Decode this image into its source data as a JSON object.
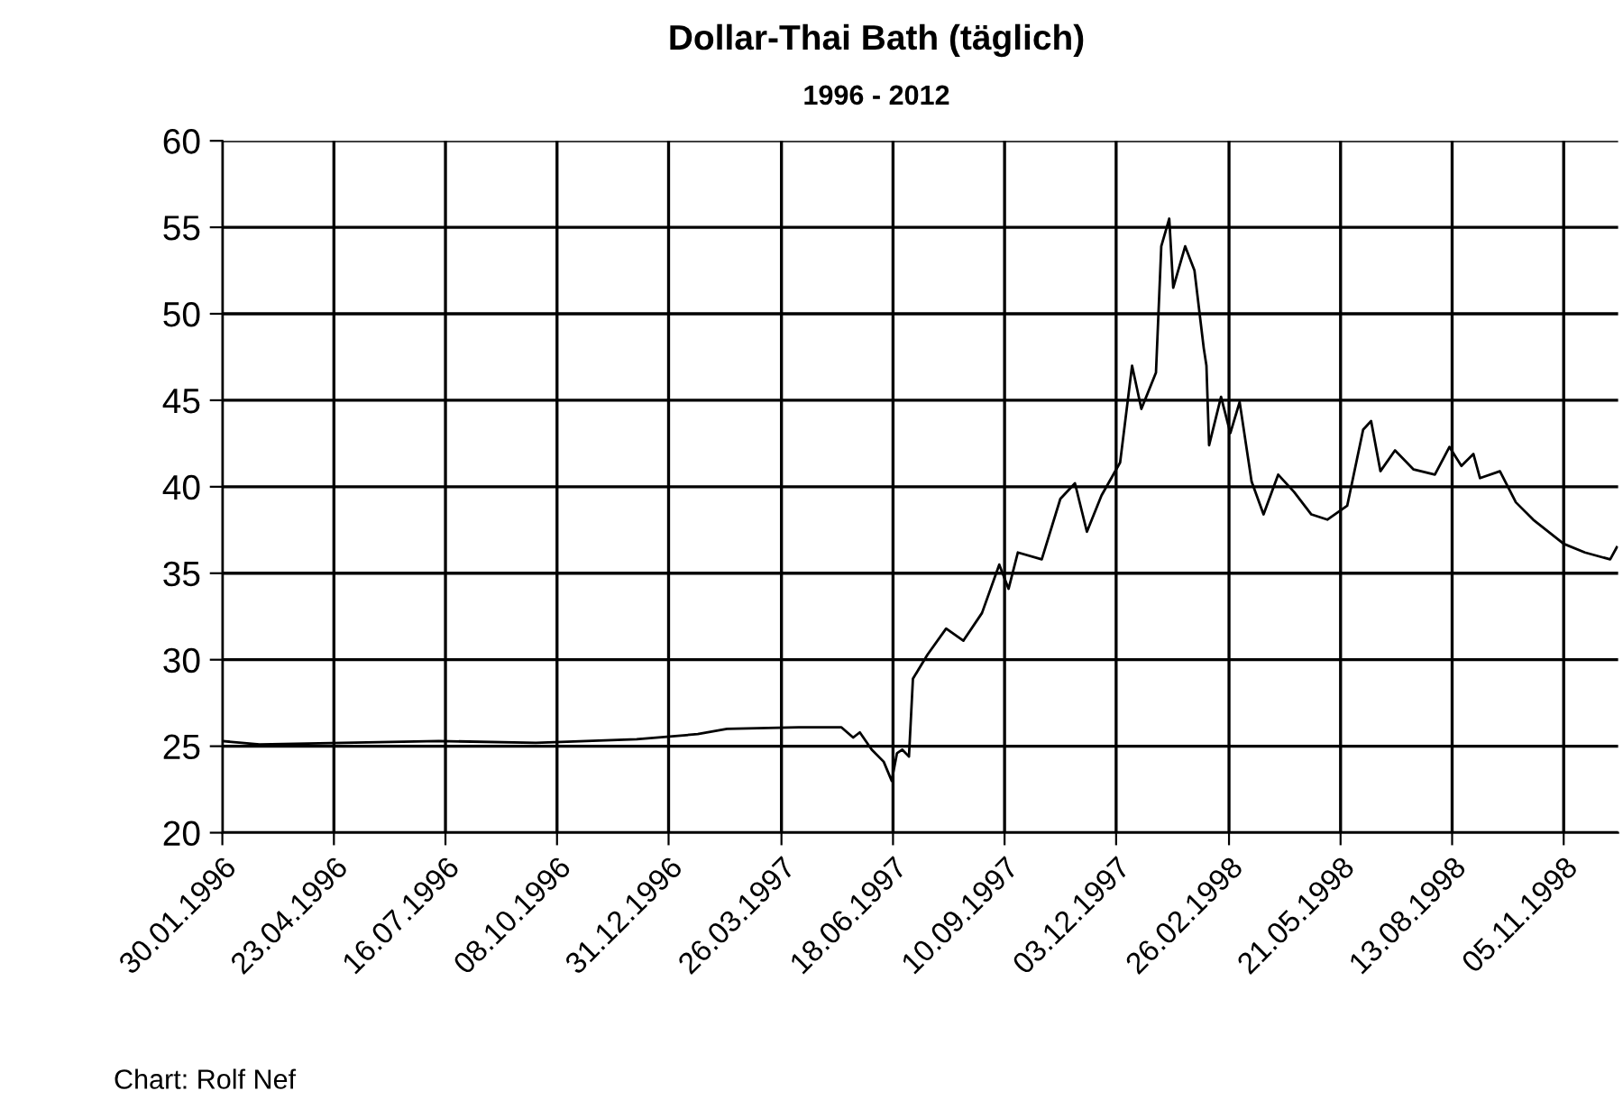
{
  "chart_data": {
    "type": "line",
    "title": "Dollar-Thai Bath (täglich)",
    "subtitle": "1996 - 2012",
    "annotations": [
      "Chart: Rolf Nef"
    ],
    "x": [
      "1996-01-30",
      "1996-02-27",
      "1996-07-11",
      "1996-09-22",
      "1996-12-07",
      "1997-01-22",
      "1997-02-13",
      "1997-04-08",
      "1997-05-10",
      "1997-05-19",
      "1997-05-24",
      "1997-06-02",
      "1997-06-11",
      "1997-06-17",
      "1997-06-21",
      "1997-06-25",
      "1997-06-30",
      "1997-07-03",
      "1997-07-14",
      "1997-07-28",
      "1997-08-10",
      "1997-08-24",
      "1997-09-06",
      "1997-09-13",
      "1997-09-20",
      "1997-10-08",
      "1997-10-22",
      "1997-11-02",
      "1997-11-11",
      "1997-11-22",
      "1997-12-06",
      "1997-12-15",
      "1997-12-22",
      "1998-01-02",
      "1998-01-06",
      "1998-01-12",
      "1998-01-15",
      "1998-01-24",
      "1998-01-31",
      "1998-02-07",
      "1998-02-09",
      "1998-02-11",
      "1998-02-20",
      "1998-02-27",
      "1998-03-06",
      "1998-03-15",
      "1998-03-24",
      "1998-04-04",
      "1998-04-16",
      "1998-04-29",
      "1998-05-11",
      "1998-05-26",
      "1998-06-07",
      "1998-06-13",
      "1998-06-20",
      "1998-07-01",
      "1998-07-15",
      "1998-07-31",
      "1998-08-11",
      "1998-08-20",
      "1998-08-29",
      "1998-09-03",
      "1998-09-18",
      "1998-09-30",
      "1998-10-13",
      "1998-11-05",
      "1998-11-21",
      "1998-12-10",
      "1998-12-15"
    ],
    "series": [
      {
        "color": "#000000",
        "values": [
          25.3,
          25.1,
          25.3,
          25.2,
          25.4,
          25.7,
          26.0,
          26.1,
          26.1,
          25.5,
          25.8,
          24.8,
          24.1,
          23.0,
          24.6,
          24.8,
          24.4,
          28.9,
          30.3,
          31.8,
          31.1,
          32.7,
          35.5,
          34.1,
          36.2,
          35.8,
          39.3,
          40.2,
          37.4,
          39.5,
          41.4,
          47.0,
          44.5,
          46.6,
          53.9,
          55.5,
          51.5,
          53.9,
          52.5,
          48.0,
          47.0,
          42.4,
          45.2,
          43.1,
          44.9,
          40.3,
          38.4,
          40.7,
          39.7,
          38.4,
          38.1,
          38.9,
          43.3,
          43.8,
          40.9,
          42.1,
          41.0,
          40.7,
          42.3,
          41.2,
          41.9,
          40.5,
          40.9,
          39.1,
          38.1,
          36.7,
          36.2,
          35.8,
          36.5
        ]
      }
    ],
    "xlim": [
      "1996-01-30",
      "1998-12-16"
    ],
    "xticks": [
      {
        "value": "1996-01-30",
        "label": "30.01.1996"
      },
      {
        "value": "1996-04-23",
        "label": "23.04.1996"
      },
      {
        "value": "1996-07-16",
        "label": "16.07.1996"
      },
      {
        "value": "1996-10-08",
        "label": "08.10.1996"
      },
      {
        "value": "1996-12-31",
        "label": "31.12.1996"
      },
      {
        "value": "1997-03-26",
        "label": "26.03.1997"
      },
      {
        "value": "1997-06-18",
        "label": "18.06.1997"
      },
      {
        "value": "1997-09-10",
        "label": "10.09.1997"
      },
      {
        "value": "1997-12-03",
        "label": "03.12.1997"
      },
      {
        "value": "1998-02-26",
        "label": "26.02.1998"
      },
      {
        "value": "1998-05-21",
        "label": "21.05.1998"
      },
      {
        "value": "1998-08-13",
        "label": "13.08.1998"
      },
      {
        "value": "1998-11-05",
        "label": "05.11.1998"
      }
    ],
    "ylim": [
      20,
      60
    ],
    "yticks": [
      20,
      25,
      30,
      35,
      40,
      45,
      50,
      55,
      60
    ],
    "grid": true,
    "line_style": "solid",
    "marker": "none",
    "legend": false
  }
}
